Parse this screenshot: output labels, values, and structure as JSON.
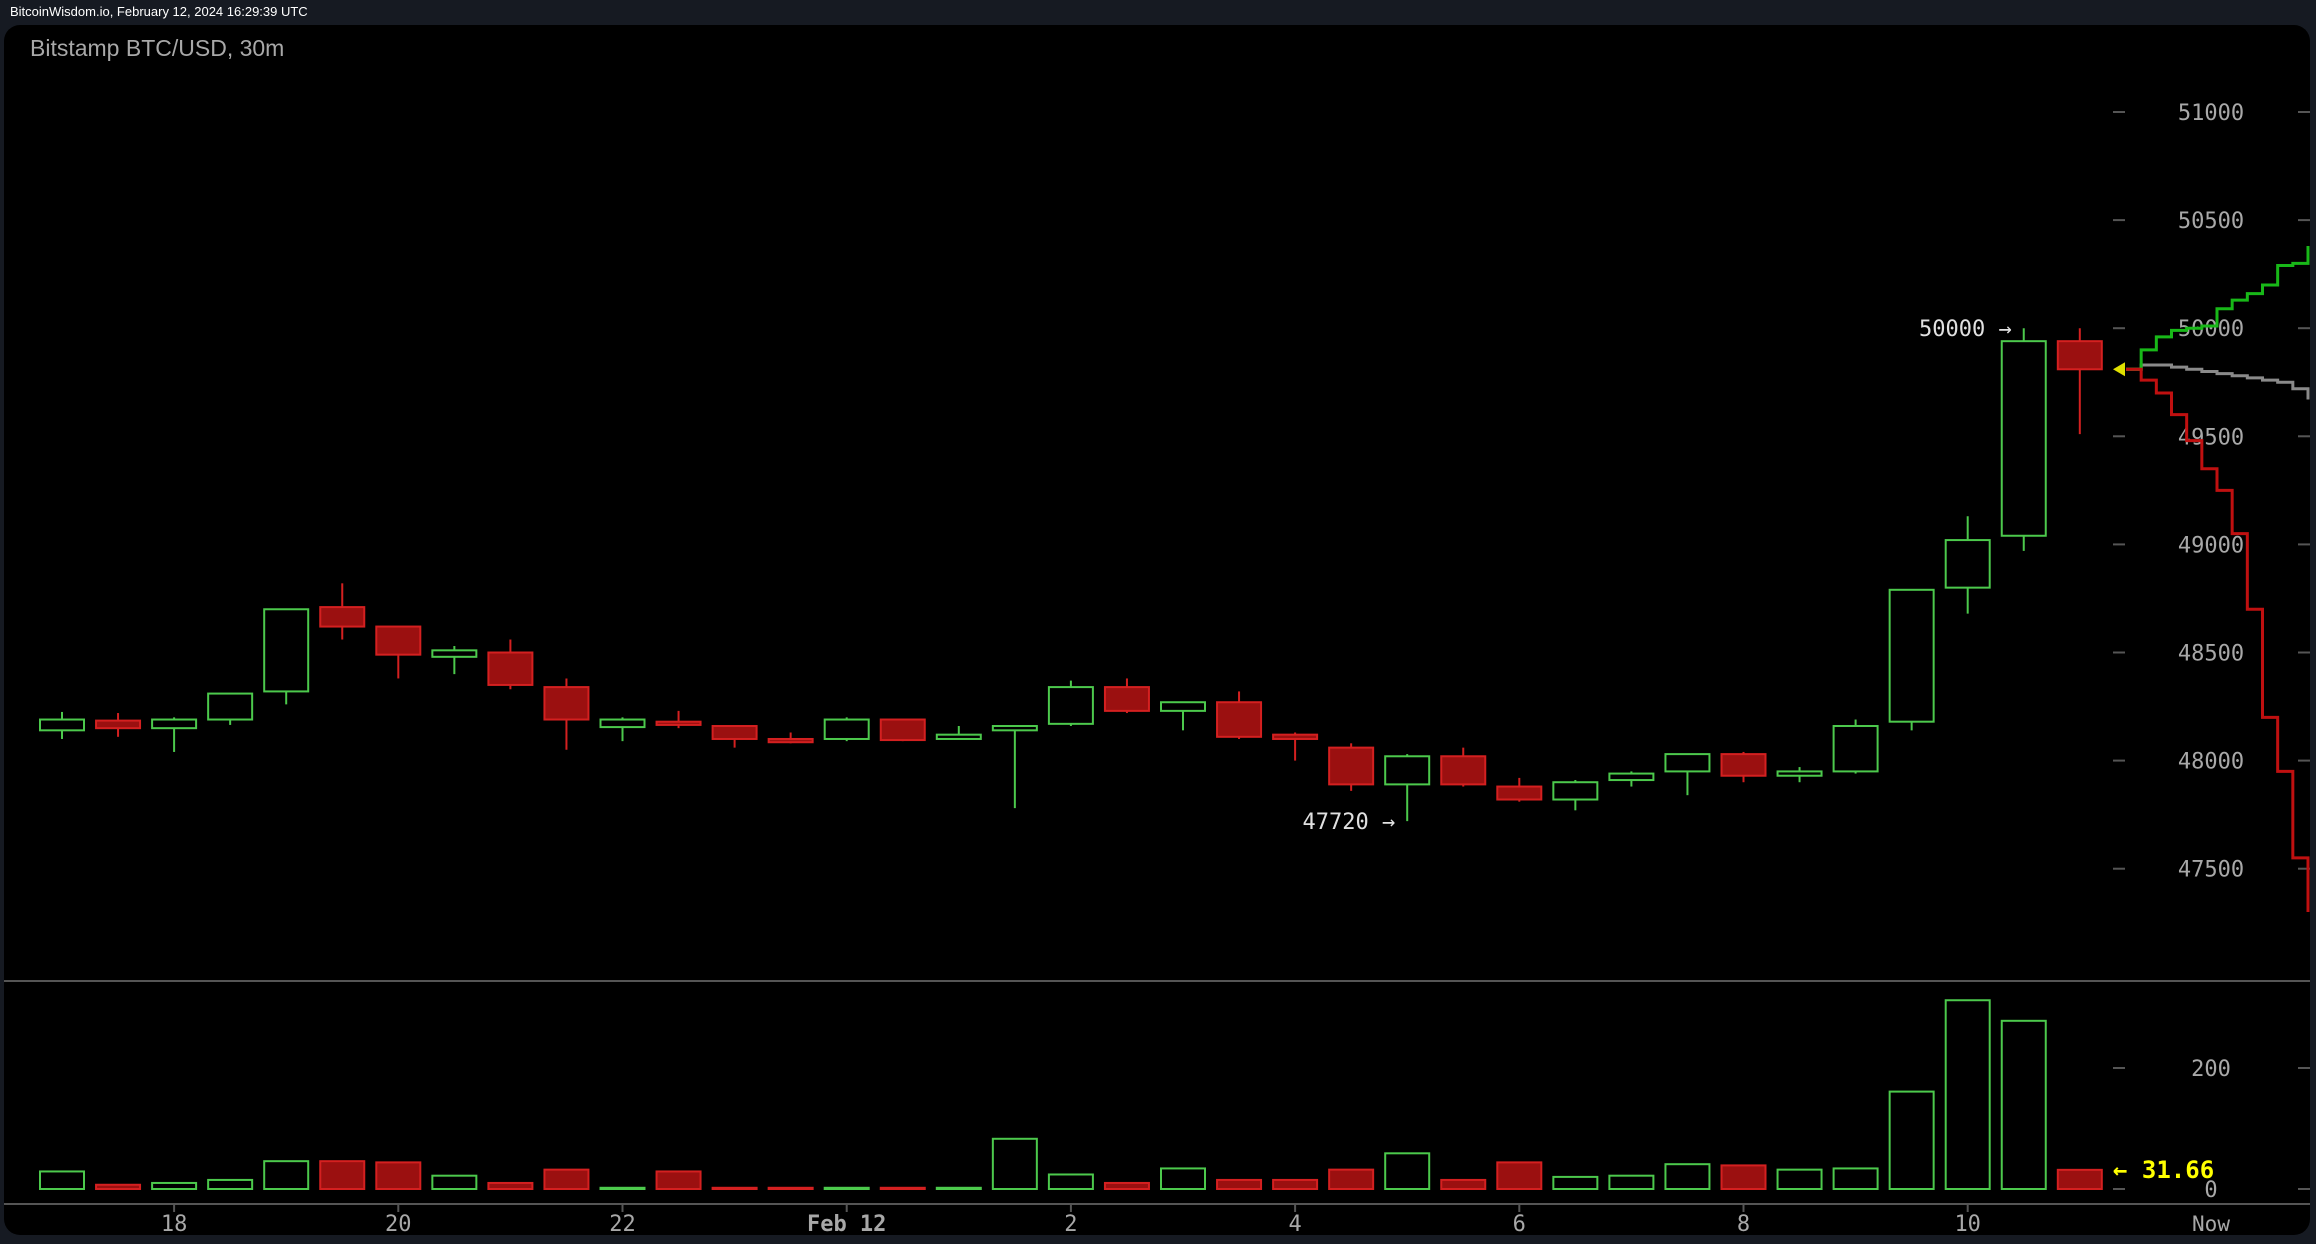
{
  "header": {
    "source_timestamp": "BitcoinWisdom.io, February 12, 2024 16:29:39 UTC"
  },
  "chart_title": "Bitstamp BTC/USD, 30m",
  "colors": {
    "up": "#4cc94c",
    "down": "#9b1010",
    "down_border": "#d42020",
    "axis_text": "#a8a8a8",
    "annotation": "#e0e0e0",
    "highlight": "#ffff00",
    "background": "#000000"
  },
  "chart_data": [
    {
      "type": "candlestick",
      "title": "Bitstamp BTC/USD, 30m",
      "interval": "30m",
      "ylim": [
        47250,
        51250
      ],
      "y_ticks": [
        51000,
        50500,
        50000,
        49500,
        49000,
        48500,
        48000,
        47500
      ],
      "x_ticks": [
        {
          "index": 2,
          "label": "18"
        },
        {
          "index": 6,
          "label": "20"
        },
        {
          "index": 10,
          "label": "22"
        },
        {
          "index": 14,
          "label": "Feb 12"
        },
        {
          "index": 18,
          "label": "2"
        },
        {
          "index": 22,
          "label": "4"
        },
        {
          "index": 26,
          "label": "6"
        },
        {
          "index": 30,
          "label": "8"
        },
        {
          "index": 34,
          "label": "10"
        }
      ],
      "x_end_label": "Now",
      "grid": false,
      "candles": [
        [
          48140,
          48225,
          48100,
          48190
        ],
        [
          48185,
          48220,
          48110,
          48150
        ],
        [
          48150,
          48200,
          48040,
          48190
        ],
        [
          48190,
          48310,
          48165,
          48310
        ],
        [
          48320,
          48700,
          48260,
          48700
        ],
        [
          48710,
          48820,
          48560,
          48620
        ],
        [
          48620,
          48620,
          48380,
          48490
        ],
        [
          48480,
          48530,
          48400,
          48510
        ],
        [
          48500,
          48560,
          48330,
          48350
        ],
        [
          48340,
          48380,
          48050,
          48190
        ],
        [
          48155,
          48200,
          48090,
          48190
        ],
        [
          48180,
          48230,
          48150,
          48165
        ],
        [
          48160,
          48160,
          48060,
          48100
        ],
        [
          48100,
          48130,
          48080,
          48085
        ],
        [
          48100,
          48200,
          48090,
          48190
        ],
        [
          48190,
          48190,
          48090,
          48095
        ],
        [
          48100,
          48160,
          48100,
          48120
        ],
        [
          48140,
          48160,
          47780,
          48160
        ],
        [
          48170,
          48370,
          48160,
          48340
        ],
        [
          48340,
          48380,
          48220,
          48230
        ],
        [
          48230,
          48270,
          48140,
          48270
        ],
        [
          48270,
          48320,
          48100,
          48110
        ],
        [
          48120,
          48130,
          48000,
          48100
        ],
        [
          48060,
          48080,
          47860,
          47890
        ],
        [
          47890,
          48030,
          47720,
          48020
        ],
        [
          48020,
          48060,
          47880,
          47890
        ],
        [
          47880,
          47920,
          47810,
          47820
        ],
        [
          47820,
          47910,
          47770,
          47900
        ],
        [
          47910,
          47950,
          47880,
          47940
        ],
        [
          47950,
          48030,
          47840,
          48030
        ],
        [
          48030,
          48040,
          47900,
          47930
        ],
        [
          47930,
          47970,
          47900,
          47950
        ],
        [
          47950,
          48190,
          47940,
          48160
        ],
        [
          48180,
          48790,
          48140,
          48790
        ],
        [
          48800,
          49130,
          48680,
          49020
        ],
        [
          49040,
          50000,
          48970,
          49940
        ],
        [
          49940,
          50000,
          49510,
          49810
        ]
      ],
      "candle_fields": [
        "open",
        "high",
        "low",
        "close"
      ],
      "annotations": [
        {
          "candle": 35,
          "price": 50000,
          "label": "50000 →"
        },
        {
          "candle": 24,
          "price": 47720,
          "label": "47720 →"
        }
      ],
      "last_price": 49810,
      "order_book_depth": {
        "asks": [
          49810,
          49900,
          49960,
          49990,
          50000,
          50010,
          50090,
          50130,
          50160,
          50200,
          50290,
          50300,
          50380
        ],
        "mid": [
          49810,
          49830,
          49830,
          49820,
          49810,
          49800,
          49790,
          49780,
          49770,
          49760,
          49750,
          49720,
          49670
        ],
        "bids": [
          49810,
          49760,
          49700,
          49600,
          49480,
          49350,
          49250,
          49050,
          48700,
          48200,
          47950,
          47550,
          47300
        ]
      }
    },
    {
      "type": "bar",
      "series_label": "volume",
      "ylim": [
        0,
        330
      ],
      "y_ticks": [
        200,
        0
      ],
      "values": [
        29,
        7,
        10,
        15,
        46,
        46,
        44,
        22,
        10,
        32,
        2,
        29,
        2,
        2,
        2,
        2,
        2,
        83,
        24,
        10,
        34,
        15,
        15,
        32,
        59,
        15,
        44,
        20,
        22,
        41,
        39,
        32,
        34,
        161,
        312,
        278,
        31.66
      ],
      "last_volume_label": "← 31.66"
    }
  ]
}
